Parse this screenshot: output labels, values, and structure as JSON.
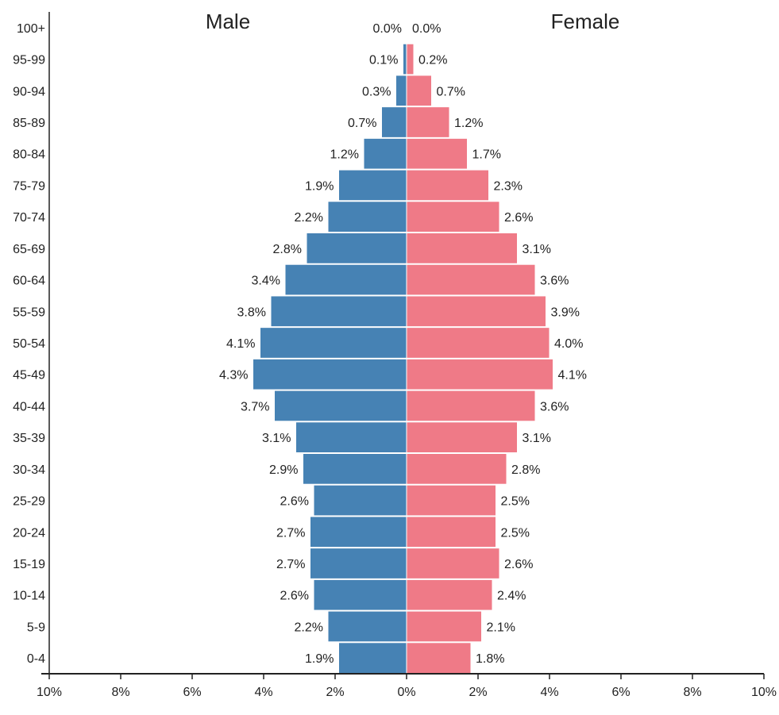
{
  "chart_data": {
    "type": "bar",
    "orientation": "horizontal-pyramid",
    "title_left": "Male",
    "title_right": "Female",
    "categories": [
      "0-4",
      "5-9",
      "10-14",
      "15-19",
      "20-24",
      "25-29",
      "30-34",
      "35-39",
      "40-44",
      "45-49",
      "50-54",
      "55-59",
      "60-64",
      "65-69",
      "70-74",
      "75-79",
      "80-84",
      "85-89",
      "90-94",
      "95-99",
      "100+"
    ],
    "series": [
      {
        "name": "Male",
        "color": "#4682b4",
        "values": [
          1.9,
          2.2,
          2.6,
          2.7,
          2.7,
          2.6,
          2.9,
          3.1,
          3.7,
          4.3,
          4.1,
          3.8,
          3.4,
          2.8,
          2.2,
          1.9,
          1.2,
          0.7,
          0.3,
          0.1,
          0.0
        ]
      },
      {
        "name": "Female",
        "color": "#ef7a87",
        "values": [
          1.8,
          2.1,
          2.4,
          2.6,
          2.5,
          2.5,
          2.8,
          3.1,
          3.6,
          4.1,
          4.0,
          3.9,
          3.6,
          3.1,
          2.6,
          2.3,
          1.7,
          1.2,
          0.7,
          0.2,
          0.0
        ]
      }
    ],
    "value_labels_male": [
      "1.9%",
      "2.2%",
      "2.6%",
      "2.7%",
      "2.7%",
      "2.6%",
      "2.9%",
      "3.1%",
      "3.7%",
      "4.3%",
      "4.1%",
      "3.8%",
      "3.4%",
      "2.8%",
      "2.2%",
      "1.9%",
      "1.2%",
      "0.7%",
      "0.3%",
      "0.1%",
      "0.0%"
    ],
    "value_labels_female": [
      "1.8%",
      "2.1%",
      "2.4%",
      "2.6%",
      "2.5%",
      "2.5%",
      "2.8%",
      "3.1%",
      "3.6%",
      "4.1%",
      "4.0%",
      "3.9%",
      "3.6%",
      "3.1%",
      "2.6%",
      "2.3%",
      "1.7%",
      "1.2%",
      "0.7%",
      "0.2%",
      "0.0%"
    ],
    "x_ticks": [
      -10,
      -8,
      -6,
      -4,
      -2,
      0,
      2,
      4,
      6,
      8,
      10
    ],
    "x_tick_labels": [
      "10%",
      "8%",
      "6%",
      "4%",
      "2%",
      "0%",
      "2%",
      "4%",
      "6%",
      "8%",
      "10%"
    ],
    "xlim": [
      -10,
      10
    ],
    "xlabel": "",
    "ylabel": "",
    "grid": false
  }
}
